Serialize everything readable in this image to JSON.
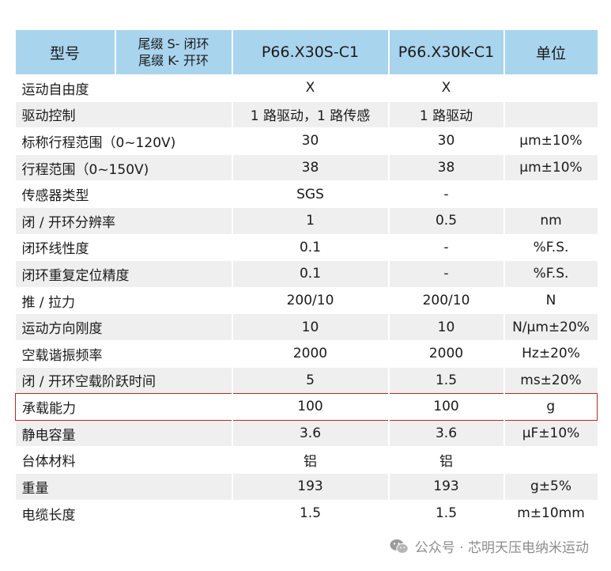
{
  "header": {
    "model": "型号",
    "suffix_line1": "尾缀 S- 闭环",
    "suffix_line2": "尾缀 K- 开环",
    "col_s": "P66.X30S-C1",
    "col_k": "P66.X30K-C1",
    "unit": "单位"
  },
  "rows": [
    {
      "param": "运动自由度",
      "s": "X",
      "k": "X",
      "unit": ""
    },
    {
      "param": "驱动控制",
      "s": "1 路驱动，1 路传感",
      "k": "1 路驱动",
      "unit": ""
    },
    {
      "param": "标称行程范围（0~120V)",
      "s": "30",
      "k": "30",
      "unit": "μm±10%"
    },
    {
      "param": "行程范围（0~150V)",
      "s": "38",
      "k": "38",
      "unit": "μm±10%"
    },
    {
      "param": "传感器类型",
      "s": "SGS",
      "k": "-",
      "unit": ""
    },
    {
      "param": "闭 / 开环分辨率",
      "s": "1",
      "k": "0.5",
      "unit": "nm"
    },
    {
      "param": "闭环线性度",
      "s": "0.1",
      "k": "-",
      "unit": "%F.S."
    },
    {
      "param": "闭环重复定位精度",
      "s": "0.1",
      "k": "-",
      "unit": "%F.S."
    },
    {
      "param": "推 / 拉力",
      "s": "200/10",
      "k": "200/10",
      "unit": "N"
    },
    {
      "param": "运动方向刚度",
      "s": "10",
      "k": "10",
      "unit": "N/μm±20%"
    },
    {
      "param": "空载谐振频率",
      "s": "2000",
      "k": "2000",
      "unit": "Hz±20%"
    },
    {
      "param": "闭 / 开环空载阶跃时间",
      "s": "5",
      "k": "1.5",
      "unit": "ms±20%"
    },
    {
      "param": "承载能力",
      "s": "100",
      "k": "100",
      "unit": "g"
    },
    {
      "param": "静电容量",
      "s": "3.6",
      "k": "3.6",
      "unit": "μF±10%"
    },
    {
      "param": "台体材料",
      "s": "铝",
      "k": "铝",
      "unit": ""
    },
    {
      "param": "重量",
      "s": "193",
      "k": "193",
      "unit": "g±5%"
    },
    {
      "param": "电缆长度",
      "s": "1.5",
      "k": "1.5",
      "unit": "m±10mm"
    }
  ],
  "watermark": {
    "icon": "wechat-icon",
    "text": "公众号 · 芯明天压电纳米运动"
  },
  "colors": {
    "header_bg": "#a9d4ee",
    "stripe_bg": "#efefef",
    "highlight_border": "#b22a2a"
  }
}
